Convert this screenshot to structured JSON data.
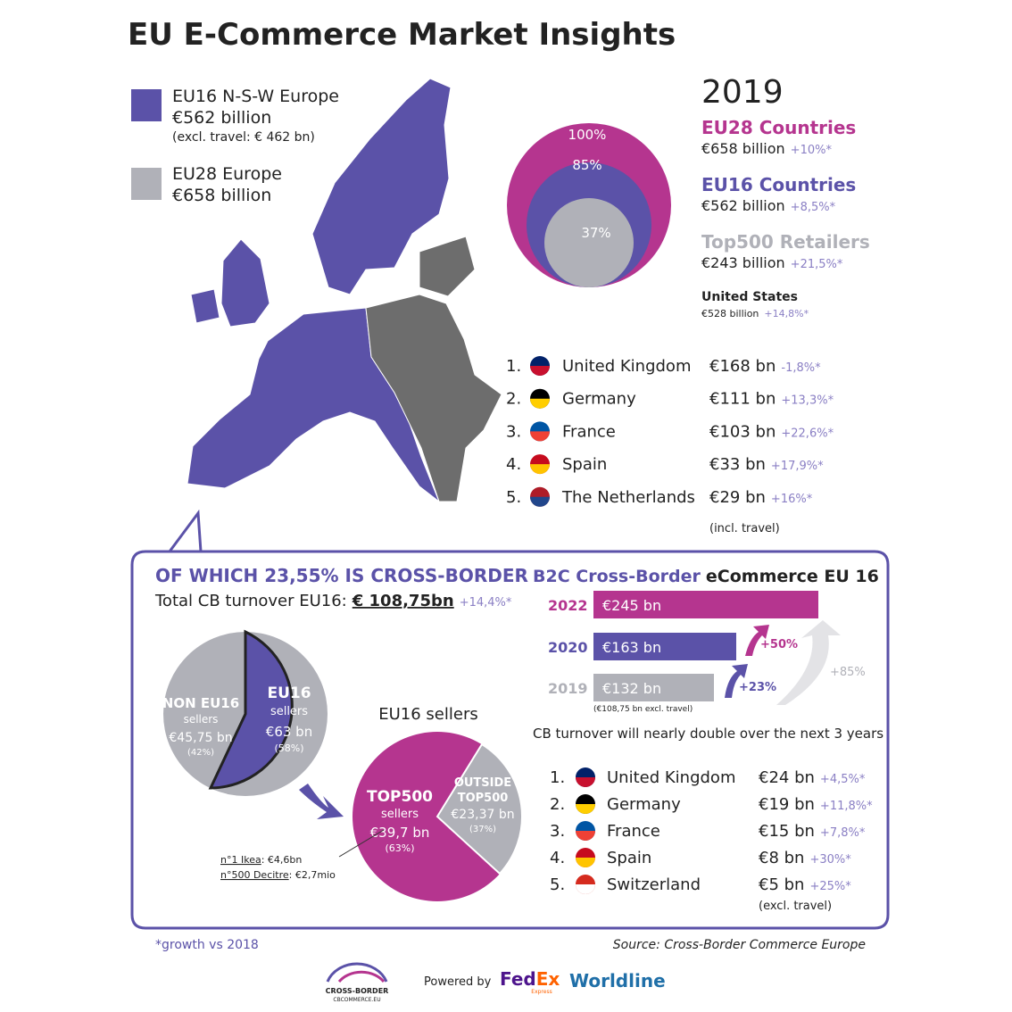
{
  "title": "EU E-Commerce Market Insights",
  "legend": [
    {
      "label": "EU16 N-S-W Europe",
      "value": "€562 billion",
      "note": "(excl. travel: € 462 bn)"
    },
    {
      "label": "EU28 Europe",
      "value": "€658 billion"
    }
  ],
  "year": "2019",
  "circles": [
    "100%",
    "85%",
    "37%"
  ],
  "summary": [
    {
      "name": "EU28 Countries",
      "value": "€658 billion",
      "growth": "+10%*"
    },
    {
      "name": "EU16 Countries",
      "value": "€562 billion",
      "growth": "+8,5%*"
    },
    {
      "name": "Top500 Retailers",
      "value": "€243 billion",
      "growth": "+21,5%*"
    },
    {
      "name": "United States",
      "value": "€528 billion",
      "growth": "+14,8%*"
    }
  ],
  "top_countries": [
    {
      "rank": "1.",
      "name": "United Kingdom",
      "value": "€168 bn",
      "growth": "-1,8%*"
    },
    {
      "rank": "2.",
      "name": "Germany",
      "value": "€111 bn",
      "growth": "+13,3%*"
    },
    {
      "rank": "3.",
      "name": "France",
      "value": "€103 bn",
      "growth": "+22,6%*"
    },
    {
      "rank": "4.",
      "name": "Spain",
      "value": "€33 bn",
      "growth": "+17,9%*"
    },
    {
      "rank": "5.",
      "name": "The Netherlands",
      "value": "€29 bn",
      "growth": "+16%*"
    }
  ],
  "top_note": "(incl. travel)",
  "cross_border": {
    "heading": "OF WHICH 23,55% IS CROSS-BORDER",
    "total_label": "Total CB turnover EU16:",
    "total": "€ 108,75bn",
    "total_growth": "+14,4%*",
    "pie1": [
      {
        "name": "NON EU16",
        "sub": "sellers",
        "value": "€45,75 bn",
        "share": "(42%)"
      },
      {
        "name": "EU16",
        "sub": "sellers",
        "value": "€63 bn",
        "share": "(58%)"
      }
    ],
    "pie2_title": "EU16 sellers",
    "pie2": [
      {
        "name": "TOP500",
        "sub": "sellers",
        "value": "€39,7 bn",
        "share": "(63%)"
      },
      {
        "name": "OUTSIDE",
        "sub": "TOP500",
        "value": "€23,37 bn",
        "share": "(37%)"
      }
    ],
    "notes": [
      {
        "label": "n°1 Ikea",
        "value": ": €4,6bn"
      },
      {
        "label": "n°500 Decitre",
        "value": ": €2,7mio"
      }
    ],
    "b2c_title_a": "B2C Cross-Border",
    "b2c_title_b": "eCommerce EU 16",
    "bars": [
      {
        "year": "2022",
        "value": "€245 bn"
      },
      {
        "year": "2020",
        "value": "€163 bn"
      },
      {
        "year": "2019",
        "value": "€132 bn"
      }
    ],
    "bar_note": "(€108,75 bn excl. travel)",
    "growth_arrows": [
      "+50%",
      "+23%",
      "+85%"
    ],
    "forecast": "CB turnover will nearly double over the next 3 years",
    "cb_countries": [
      {
        "rank": "1.",
        "name": "United Kingdom",
        "value": "€24 bn",
        "growth": "+4,5%*"
      },
      {
        "rank": "2.",
        "name": "Germany",
        "value": "€19 bn",
        "growth": "+11,8%*"
      },
      {
        "rank": "3.",
        "name": "France",
        "value": "€15 bn",
        "growth": "+7,8%*"
      },
      {
        "rank": "4.",
        "name": "Spain",
        "value": "€8 bn",
        "growth": "+30%*"
      },
      {
        "rank": "5.",
        "name": "Switzerland",
        "value": "€5 bn",
        "growth": "+25%*"
      }
    ],
    "cb_note": "(excl. travel)"
  },
  "footer": {
    "growth_note": "*growth vs 2018",
    "source": "Source: Cross-Border Commerce Europe",
    "logo": "CROSS-BORDER",
    "logo_sub": "CBCOMMERCE.EU",
    "powered": "Powered by",
    "fedex_a": "Fed",
    "fedex_b": "Ex",
    "fedex_sub": "Express",
    "worldline": "Worldline"
  }
}
